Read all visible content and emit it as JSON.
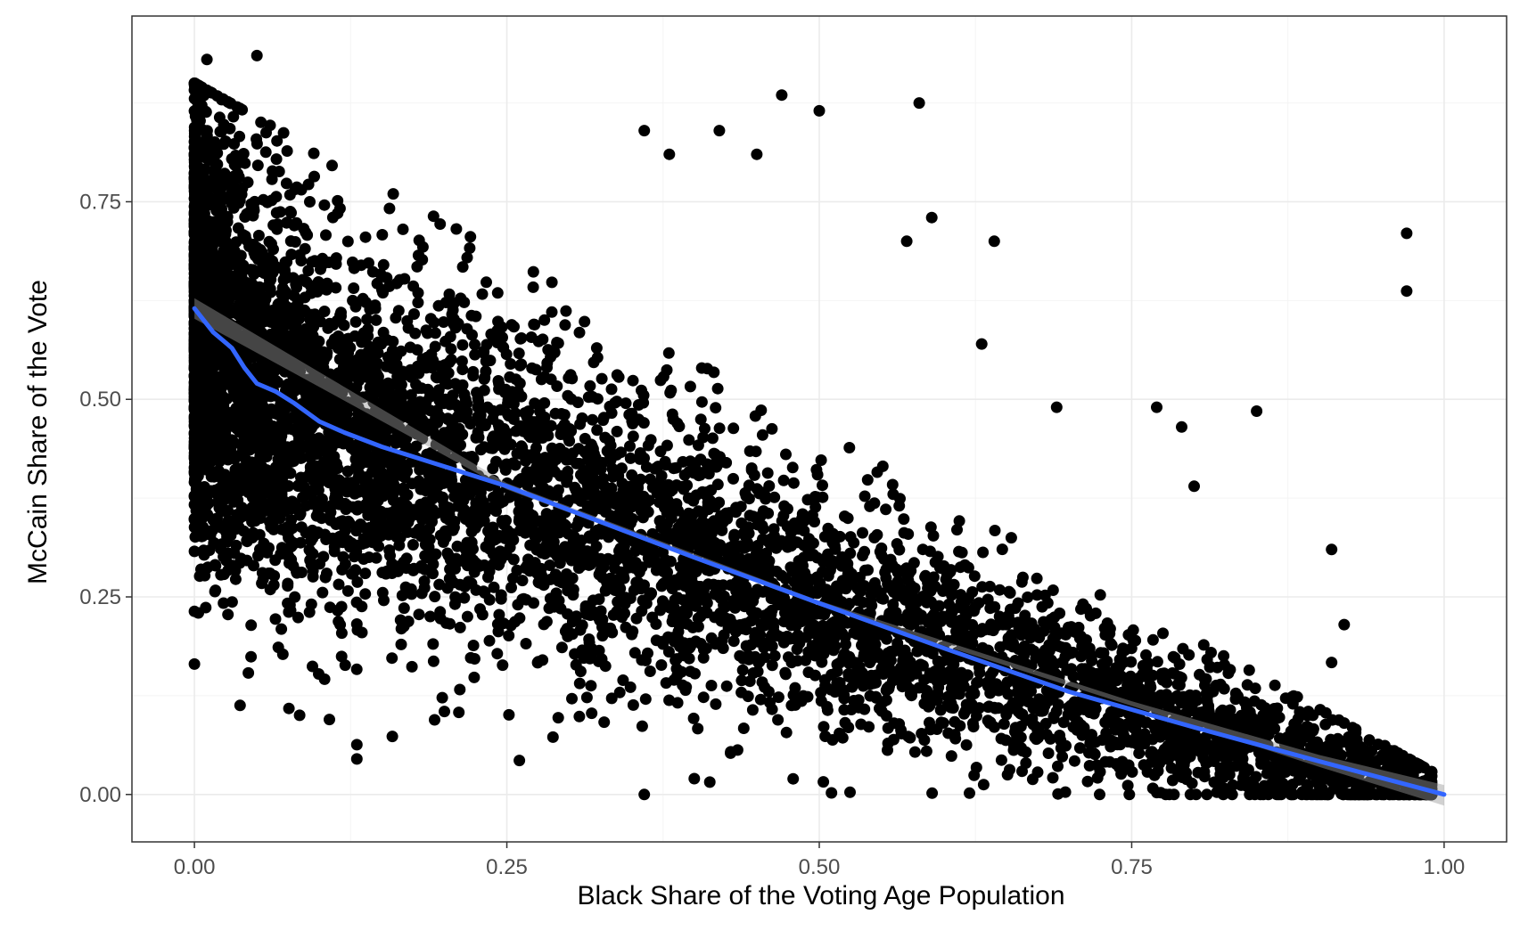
{
  "colors": {
    "background": "#ffffff",
    "panel_border": "#333333",
    "grid_major": "#ebebeb",
    "grid_minor": "#f4f4f4",
    "points": "#000000",
    "smooth_line": "#3366ff",
    "confidence_band": "#999999",
    "tick_text": "#4d4d4d"
  },
  "chart_data": {
    "type": "scatter",
    "title": "",
    "xlabel": "Black Share of the Voting Age Population",
    "ylabel": "McCain Share of the Vote",
    "xlim": [
      -0.05,
      1.05
    ],
    "ylim": [
      -0.06,
      0.985
    ],
    "x_ticks": [
      0.0,
      0.25,
      0.5,
      0.75,
      1.0
    ],
    "x_tick_labels": [
      "0.00",
      "0.25",
      "0.50",
      "0.75",
      "1.00"
    ],
    "y_ticks": [
      0.0,
      0.25,
      0.5,
      0.75
    ],
    "y_tick_labels": [
      "0.00",
      "0.25",
      "0.50",
      "0.75"
    ],
    "grid": true,
    "legend": "none",
    "point_count_description": "dense scatter of several thousand points; outliers listed individually",
    "outlier_points": [
      [
        0.01,
        0.93
      ],
      [
        0.05,
        0.935
      ],
      [
        0.36,
        0.0
      ],
      [
        0.4,
        0.02
      ],
      [
        0.58,
        0.875
      ],
      [
        0.97,
        0.71
      ],
      [
        0.97,
        0.637
      ],
      [
        0.85,
        0.485
      ],
      [
        0.91,
        0.31
      ],
      [
        0.92,
        0.215
      ],
      [
        0.91,
        0.167
      ],
      [
        0.47,
        0.885
      ],
      [
        0.5,
        0.865
      ],
      [
        0.42,
        0.84
      ],
      [
        0.36,
        0.84
      ],
      [
        0.64,
        0.7
      ],
      [
        0.63,
        0.57
      ],
      [
        0.59,
        0.73
      ],
      [
        0.57,
        0.7
      ],
      [
        0.77,
        0.49
      ],
      [
        0.79,
        0.465
      ],
      [
        0.8,
        0.39
      ],
      [
        0.69,
        0.49
      ],
      [
        0.13,
        0.063
      ],
      [
        0.13,
        0.045
      ],
      [
        0.26,
        0.043
      ],
      [
        0.2,
        0.105
      ],
      [
        0.0,
        0.165
      ],
      [
        0.38,
        0.81
      ],
      [
        0.45,
        0.81
      ]
    ],
    "smooth_line": {
      "x": [
        0.0,
        0.015,
        0.03,
        0.04,
        0.05,
        0.065,
        0.08,
        0.1,
        0.12,
        0.15,
        0.2,
        0.25,
        0.3,
        0.4,
        0.5,
        0.6,
        0.7,
        0.8,
        0.9,
        1.0
      ],
      "y": [
        0.615,
        0.585,
        0.565,
        0.54,
        0.52,
        0.51,
        0.495,
        0.472,
        0.458,
        0.44,
        0.415,
        0.39,
        0.36,
        0.3,
        0.242,
        0.185,
        0.13,
        0.085,
        0.042,
        0.0
      ]
    },
    "confidence_band": {
      "x": [
        0.0,
        0.25,
        0.5,
        0.75,
        0.9,
        1.0
      ],
      "upper": [
        0.628,
        0.394,
        0.245,
        0.118,
        0.05,
        0.012
      ],
      "lower": [
        0.602,
        0.386,
        0.239,
        0.112,
        0.035,
        -0.014
      ]
    }
  }
}
